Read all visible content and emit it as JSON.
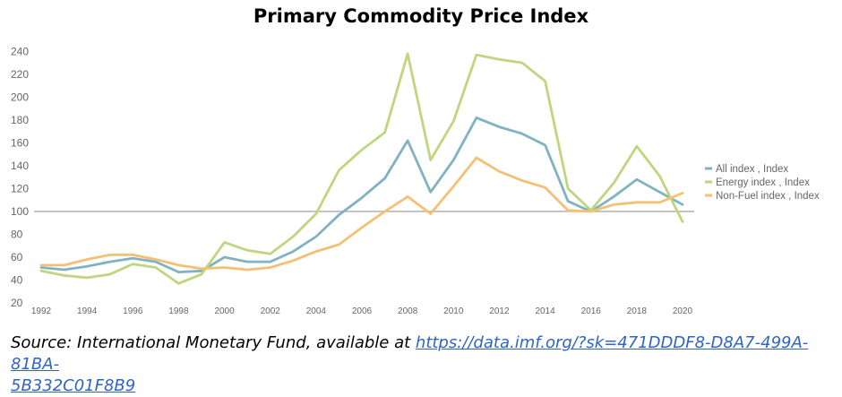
{
  "chart_data": {
    "type": "line",
    "title": "Primary Commodity Price Index",
    "x": [
      1992,
      1993,
      1994,
      1995,
      1996,
      1997,
      1998,
      1999,
      2000,
      2001,
      2002,
      2003,
      2004,
      2005,
      2006,
      2007,
      2008,
      2009,
      2010,
      2011,
      2012,
      2013,
      2014,
      2015,
      2016,
      2017,
      2018,
      2019,
      2020
    ],
    "x_tick_labels": [
      "1992",
      "1994",
      "1996",
      "1998",
      "2000",
      "2002",
      "2004",
      "2006",
      "2008",
      "2010",
      "2012",
      "2014",
      "2016",
      "2018",
      "2020"
    ],
    "y_tick_labels": [
      "20",
      "40",
      "60",
      "80",
      "100",
      "120",
      "140",
      "160",
      "180",
      "200",
      "220",
      "240"
    ],
    "ylim": [
      20,
      245
    ],
    "xlim": [
      1992,
      2020
    ],
    "reference_line": 100,
    "grid": false,
    "legend_position": "right",
    "series": [
      {
        "name": "All index , Index",
        "color": "#7fb3c0",
        "values": [
          51,
          49,
          52,
          56,
          59,
          56,
          47,
          48,
          60,
          56,
          56,
          65,
          78,
          97,
          112,
          129,
          162,
          117,
          145,
          182,
          174,
          168,
          158,
          109,
          100,
          113,
          128,
          117,
          106
        ]
      },
      {
        "name": "Energy index , Index",
        "color": "#bed67e",
        "values": [
          48,
          44,
          42,
          45,
          54,
          51,
          37,
          45,
          73,
          66,
          63,
          78,
          98,
          136,
          154,
          169,
          238,
          145,
          179,
          237,
          233,
          230,
          214,
          120,
          101,
          125,
          157,
          131,
          91
        ]
      },
      {
        "name": "Non-Fuel index , Index",
        "color": "#f3c074",
        "values": [
          53,
          53,
          58,
          62,
          62,
          58,
          53,
          50,
          51,
          49,
          51,
          57,
          65,
          71,
          86,
          100,
          113,
          98,
          122,
          147,
          135,
          127,
          121,
          101,
          100,
          106,
          108,
          108,
          116
        ]
      }
    ]
  },
  "source": {
    "prefix": "Source: International Monetary Fund, available at ",
    "link_text_line1": "https://data.imf.org/?sk=471DDDF8-D8A7-499A-81BA-",
    "link_text_line2": "5B332C01F8B9"
  }
}
